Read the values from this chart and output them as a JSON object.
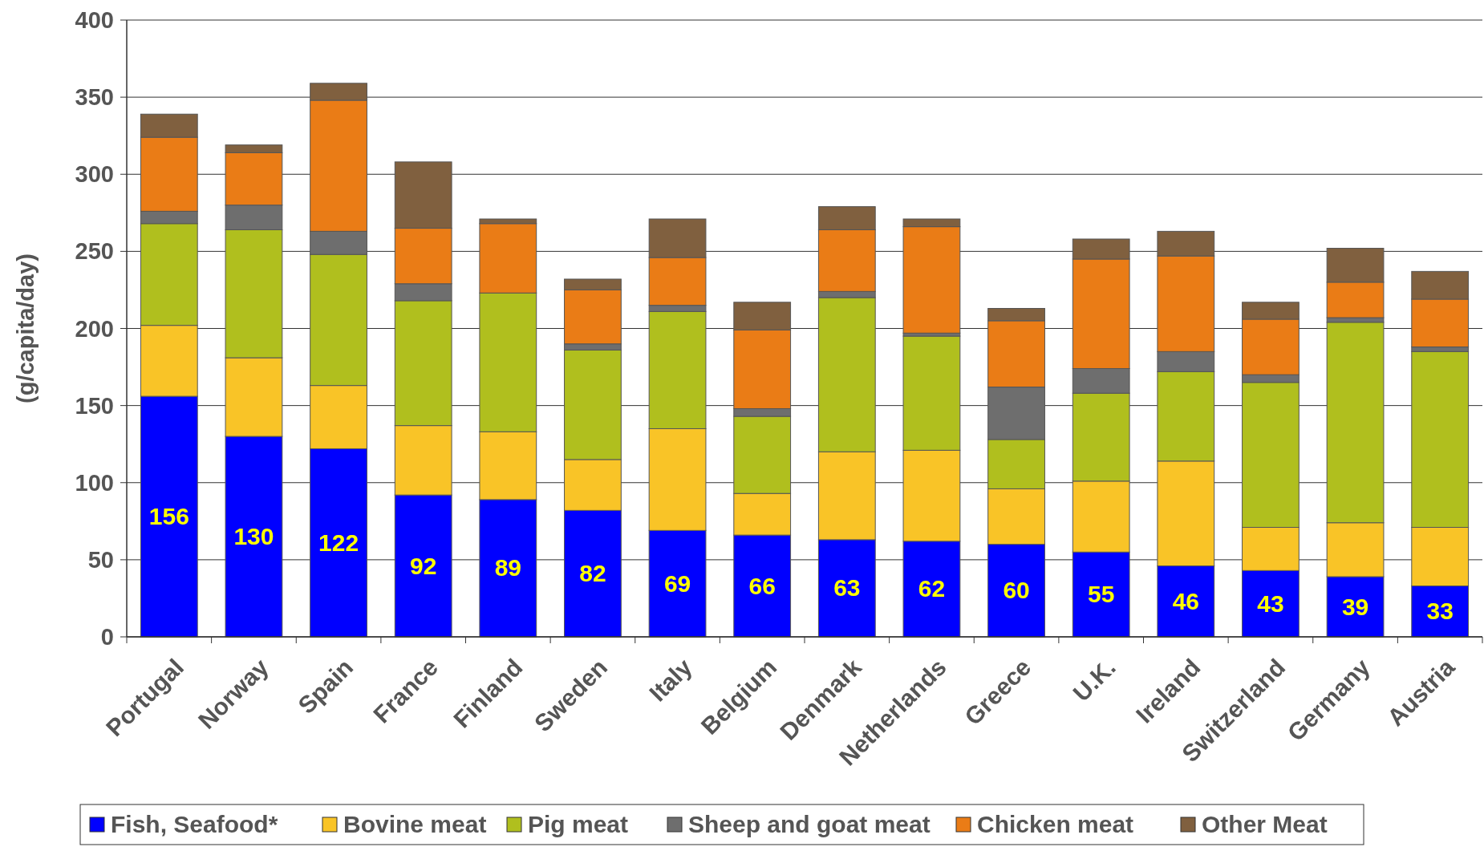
{
  "chart_data": {
    "type": "bar",
    "stacked": true,
    "ylabel": "(g/capita/day)",
    "ylim": [
      0,
      400
    ],
    "yticks": [
      0,
      50,
      100,
      150,
      200,
      250,
      300,
      350,
      400
    ],
    "grid": "y",
    "legend": "bottom",
    "categories": [
      "Portugal",
      "Norway",
      "Spain",
      "France",
      "Finland",
      "Sweden",
      "Italy",
      "Belgium",
      "Denmark",
      "Netherlands",
      "Greece",
      "U.K.",
      "Ireland",
      "Switzerland",
      "Germany",
      "Austria"
    ],
    "series": [
      {
        "name": "Fish, Seafood*",
        "color": "#0000ff",
        "values": [
          156,
          130,
          122,
          92,
          89,
          82,
          69,
          66,
          63,
          62,
          60,
          55,
          46,
          43,
          39,
          33
        ],
        "value_labels": [
          "156",
          "130",
          "122",
          "92",
          "89",
          "82",
          "69",
          "66",
          "63",
          "62",
          "60",
          "55",
          "46",
          "43",
          "39",
          "33"
        ]
      },
      {
        "name": "Bovine meat",
        "color": "#f9c427",
        "values": [
          46,
          51,
          41,
          45,
          44,
          33,
          66,
          27,
          57,
          59,
          36,
          46,
          68,
          28,
          35,
          38
        ]
      },
      {
        "name": "Pig meat",
        "color": "#b0bf1e",
        "values": [
          66,
          83,
          85,
          81,
          90,
          71,
          76,
          50,
          100,
          74,
          32,
          57,
          58,
          94,
          130,
          114
        ]
      },
      {
        "name": "Sheep and goat meat",
        "color": "#6e6e6e",
        "values": [
          8,
          16,
          15,
          11,
          0,
          4,
          4,
          5,
          4,
          2,
          34,
          16,
          13,
          5,
          3,
          3
        ]
      },
      {
        "name": "Chicken meat",
        "color": "#ea7c16",
        "values": [
          48,
          34,
          85,
          36,
          45,
          35,
          31,
          51,
          40,
          69,
          43,
          71,
          62,
          36,
          23,
          31
        ]
      },
      {
        "name": "Other Meat",
        "color": "#80603f",
        "values": [
          15,
          5,
          11,
          43,
          3,
          7,
          25,
          18,
          15,
          5,
          8,
          13,
          16,
          11,
          22,
          18
        ]
      }
    ]
  }
}
